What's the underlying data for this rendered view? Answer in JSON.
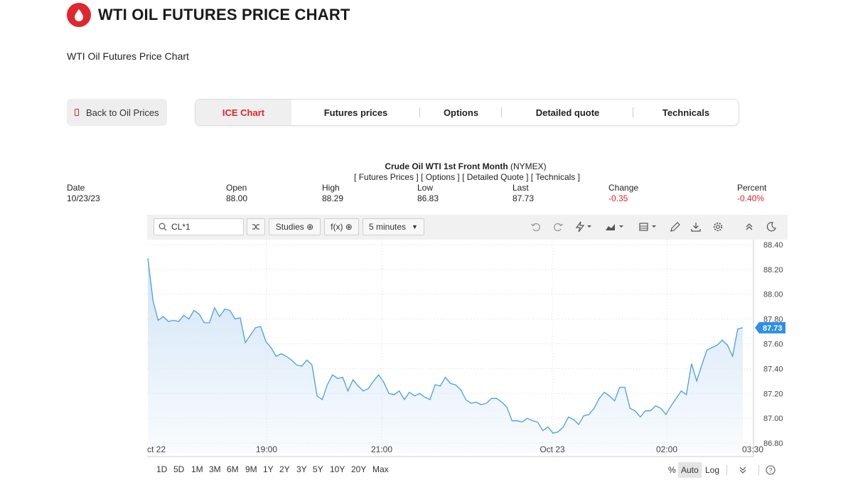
{
  "header": {
    "title": "WTI OIL FUTURES PRICE CHART",
    "subtitle": "WTI Oil Futures Price Chart"
  },
  "back_button": {
    "label": "Back to Oil Prices"
  },
  "tabs": [
    {
      "label": "ICE Chart",
      "active": true
    },
    {
      "label": "Futures prices"
    },
    {
      "label": "Options"
    },
    {
      "label": "Detailed quote"
    },
    {
      "label": "Technicals"
    }
  ],
  "quote": {
    "title": "Crude Oil WTI 1st Front Month",
    "exchange": "(NYMEX)",
    "links": "[ Futures Prices ] [ Options ] [ Detailed Quote ] [ Technicals ]",
    "date_label": "Date",
    "date": "10/23/23",
    "open_label": "Open",
    "open": "88.00",
    "high_label": "High",
    "high": "88.29",
    "low_label": "Low",
    "low": "86.83",
    "last_label": "Last",
    "last": "87.73",
    "change_label": "Change",
    "change": "-0.35",
    "percent_label": "Percent",
    "percent": "-0.40%"
  },
  "toolbar": {
    "symbol": "CL*1",
    "studies_label": "Studies ⊕",
    "fx_label": "f(x) ⊕",
    "interval_label": "5 minutes"
  },
  "range_bar": {
    "ranges": [
      "1D",
      "5D",
      "1M",
      "3M",
      "6M",
      "9M",
      "1Y",
      "2Y",
      "3Y",
      "5Y",
      "10Y",
      "20Y",
      "Max"
    ],
    "percent_label": "%",
    "auto_label": "Auto",
    "log_label": "Log"
  },
  "colors": {
    "accent": "#e0262e",
    "line": "#4a9fe0",
    "price_tag": "#2f8fe5"
  },
  "chart_data": {
    "type": "area",
    "symbol": "CL*1",
    "x_tick_labels": [
      "ct 22",
      "19:00",
      "21:00",
      "Oct 23",
      "02:00",
      "03:30"
    ],
    "y_tick_labels": [
      "88.40",
      "88.20",
      "88.00",
      "87.80",
      "87.60",
      "87.40",
      "87.20",
      "87.00",
      "86.80"
    ],
    "ylim": [
      86.72,
      88.44
    ],
    "last_price_label": "87.73",
    "grid": true,
    "values": [
      88.29,
      87.95,
      87.79,
      87.82,
      87.78,
      87.79,
      87.78,
      87.83,
      87.8,
      87.87,
      87.84,
      87.77,
      87.77,
      87.89,
      87.82,
      87.88,
      87.87,
      87.8,
      87.81,
      87.61,
      87.67,
      87.73,
      87.74,
      87.62,
      87.57,
      87.5,
      87.52,
      87.5,
      87.47,
      87.43,
      87.42,
      87.47,
      87.43,
      87.18,
      87.15,
      87.27,
      87.35,
      87.32,
      87.33,
      87.22,
      87.31,
      87.26,
      87.22,
      87.24,
      87.3,
      87.35,
      87.29,
      87.2,
      87.19,
      87.22,
      87.15,
      87.21,
      87.18,
      87.2,
      87.17,
      87.15,
      87.27,
      87.26,
      87.33,
      87.28,
      87.27,
      87.23,
      87.15,
      87.12,
      87.13,
      87.11,
      87.12,
      87.16,
      87.16,
      87.13,
      87.09,
      86.98,
      86.98,
      86.97,
      87.0,
      86.98,
      86.97,
      86.9,
      86.93,
      86.88,
      86.89,
      86.93,
      87.01,
      86.99,
      86.95,
      87.02,
      87.03,
      87.08,
      87.16,
      87.21,
      87.18,
      87.14,
      87.25,
      87.25,
      87.08,
      87.06,
      87.01,
      87.06,
      87.06,
      87.1,
      87.08,
      87.03,
      87.1,
      87.16,
      87.22,
      87.19,
      87.44,
      87.3,
      87.43,
      87.55,
      87.57,
      87.59,
      87.63,
      87.59,
      87.5,
      87.72,
      87.73
    ]
  }
}
